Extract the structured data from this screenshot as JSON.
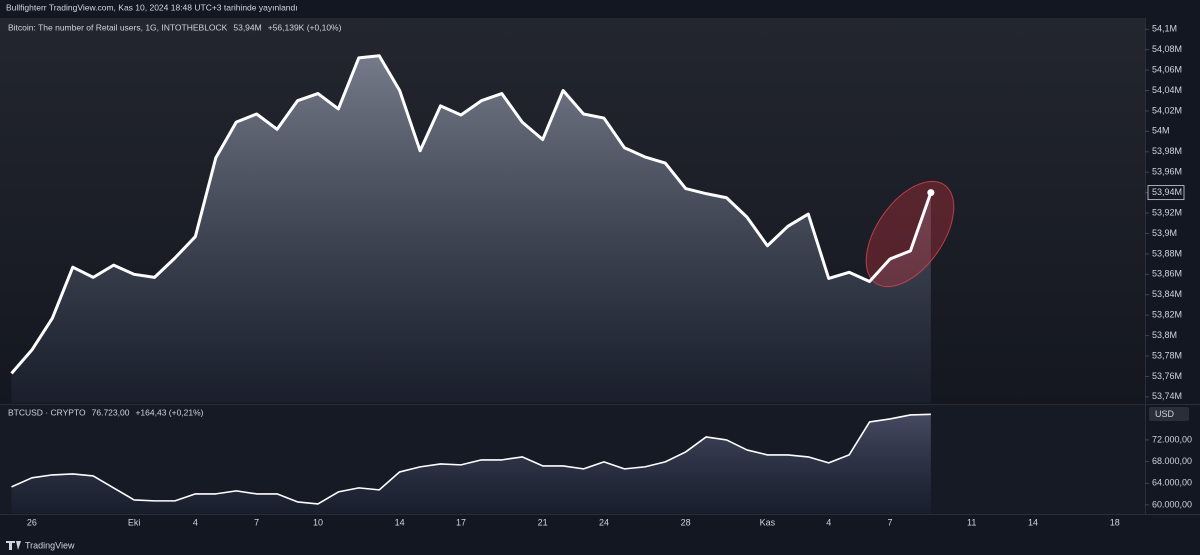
{
  "header": {
    "text": "Bullfighterr TradingView.com, Kas 10, 2024 18:48 UTC+3 tarihinde yayınlandı"
  },
  "footer": {
    "text": "TradingView"
  },
  "chart_data": [
    {
      "type": "area",
      "title": "Bitcoin: The number of Retail users, 1G, INTOTHEBLOCK",
      "last": "53,94M",
      "change": "+56,139K (+0,10%)",
      "last_value_label": "53,94M",
      "series": [
        {
          "color": "#ffffff",
          "values": [
            53.763,
            53.786,
            53.817,
            53.867,
            53.857,
            53.869,
            53.86,
            53.857,
            53.876,
            53.897,
            53.974,
            54.009,
            54.017,
            54.002,
            54.03,
            54.037,
            54.022,
            54.072,
            54.074,
            54.04,
            53.981,
            54.025,
            54.016,
            54.03,
            54.037,
            54.009,
            53.992,
            54.04,
            54.017,
            54.013,
            53.984,
            53.975,
            53.969,
            53.944,
            53.939,
            53.935,
            53.916,
            53.888,
            53.907,
            53.919,
            53.856,
            53.862,
            53.853,
            53.875,
            53.883,
            53.94,
            null,
            null,
            null,
            null,
            null,
            null,
            null,
            null,
            null
          ]
        }
      ],
      "ylim": [
        53.734,
        54.111
      ],
      "yticks": [
        {
          "value": 54.1,
          "label": "54,1M"
        },
        {
          "value": 54.08,
          "label": "54,08M"
        },
        {
          "value": 54.06,
          "label": "54,06M"
        },
        {
          "value": 54.04,
          "label": "54,04M"
        },
        {
          "value": 54.02,
          "label": "54,02M"
        },
        {
          "value": 54.0,
          "label": "54M"
        },
        {
          "value": 53.98,
          "label": "53,98M"
        },
        {
          "value": 53.96,
          "label": "53,96M"
        },
        {
          "value": 53.94,
          "label": "53,94M"
        },
        {
          "value": 53.92,
          "label": "53,92M"
        },
        {
          "value": 53.9,
          "label": "53,9M"
        },
        {
          "value": 53.88,
          "label": "53,88M"
        },
        {
          "value": 53.86,
          "label": "53,86M"
        },
        {
          "value": 53.84,
          "label": "53,84M"
        },
        {
          "value": 53.82,
          "label": "53,82M"
        },
        {
          "value": 53.8,
          "label": "53,8M"
        },
        {
          "value": 53.78,
          "label": "53,78M"
        },
        {
          "value": 53.76,
          "label": "53,76M"
        },
        {
          "value": 53.74,
          "label": "53,74M"
        }
      ]
    },
    {
      "type": "area",
      "title": "BTCUSD · CRYPTO",
      "last": "76.723,00",
      "change": "+164,43 (+0,21%)",
      "unit": "USD",
      "categories": [
        null,
        "26",
        null,
        null,
        null,
        null,
        "Eki",
        null,
        null,
        "4",
        null,
        null,
        "7",
        null,
        null,
        "10",
        null,
        null,
        null,
        "14",
        null,
        null,
        "17",
        null,
        null,
        null,
        "21",
        null,
        null,
        "24",
        null,
        null,
        null,
        "28",
        null,
        null,
        null,
        "Kas",
        null,
        null,
        "4",
        null,
        null,
        "7",
        null,
        null,
        null,
        "11",
        null,
        null,
        "14",
        null,
        null,
        null,
        "18"
      ],
      "series": [
        {
          "color": "#ffffff",
          "values": [
            63320,
            65000,
            65540,
            65720,
            65350,
            63140,
            60920,
            60740,
            60740,
            62030,
            62030,
            62590,
            62030,
            62030,
            60550,
            60180,
            62400,
            63140,
            62770,
            66090,
            67020,
            67570,
            67390,
            68310,
            68310,
            68860,
            67200,
            67200,
            66650,
            67940,
            66650,
            67020,
            67940,
            69780,
            72550,
            72000,
            70150,
            69230,
            69230,
            68860,
            67760,
            69230,
            75320,
            75880,
            76620,
            76723,
            null,
            null,
            null,
            null,
            null,
            null,
            null,
            null,
            null
          ]
        }
      ],
      "ylim": [
        58500,
        78450
      ],
      "yticks": [
        {
          "value": 72000,
          "label": "72.000,00"
        },
        {
          "value": 68000,
          "label": "68.000,00"
        },
        {
          "value": 64000,
          "label": "64.000,00"
        },
        {
          "value": 60000,
          "label": "60.000,00"
        }
      ]
    }
  ]
}
